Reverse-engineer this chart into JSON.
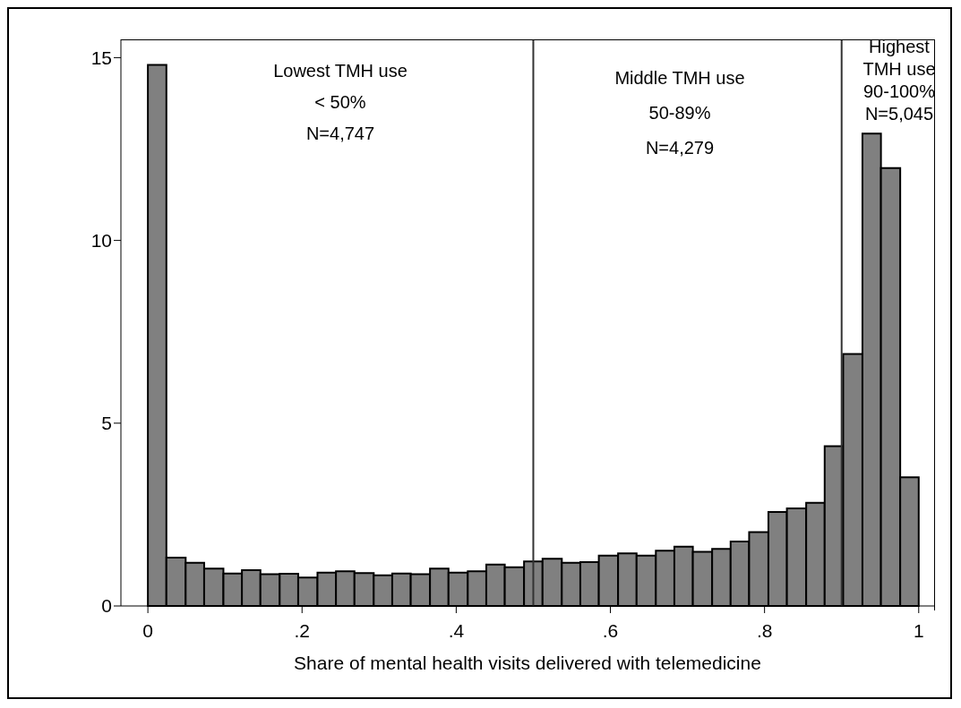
{
  "chart_data": {
    "type": "histogram",
    "xlabel": "Share of mental health visits delivered with telemedicine",
    "bins": [
      0,
      0.024,
      0.049,
      0.073,
      0.098,
      0.122,
      0.146,
      0.171,
      0.195,
      0.22,
      0.244,
      0.268,
      0.293,
      0.317,
      0.341,
      0.366,
      0.39,
      0.415,
      0.439,
      0.463,
      0.488,
      0.512,
      0.537,
      0.561,
      0.585,
      0.61,
      0.634,
      0.659,
      0.683,
      0.707,
      0.732,
      0.756,
      0.78,
      0.805,
      0.829,
      0.854,
      0.878,
      0.902,
      0.927,
      0.951,
      0.976,
      1
    ],
    "values": [
      14.8,
      1.32,
      1.18,
      1.02,
      0.89,
      0.98,
      0.87,
      0.88,
      0.78,
      0.91,
      0.95,
      0.9,
      0.84,
      0.89,
      0.87,
      1.02,
      0.91,
      0.95,
      1.13,
      1.06,
      1.22,
      1.29,
      1.18,
      1.2,
      1.38,
      1.44,
      1.38,
      1.51,
      1.62,
      1.48,
      1.56,
      1.76,
      2.02,
      2.57,
      2.67,
      2.82,
      4.37,
      6.89,
      12.92,
      11.98,
      3.52
    ],
    "color": "#808080",
    "xlim": [
      -0.035,
      1.02
    ],
    "xticks": [
      {
        "value": 0,
        "label": "0"
      },
      {
        "value": 0.2,
        "label": ".2"
      },
      {
        "value": 0.4,
        "label": ".4"
      },
      {
        "value": 0.6,
        "label": ".6"
      },
      {
        "value": 0.8,
        "label": ".8"
      },
      {
        "value": 1,
        "label": "1"
      }
    ],
    "ylim": [
      0,
      15.5
    ],
    "yticks": [
      0,
      5,
      10,
      15
    ],
    "grid": false,
    "ref_lines": [
      {
        "axis": "x",
        "value": 0.5,
        "color": "#333333"
      },
      {
        "axis": "x",
        "value": 0.9,
        "color": "#333333"
      }
    ],
    "annotations": [
      "Lowest TMH use\n< 50%\nN=4,747",
      "Middle TMH use\n50-89%\nN=4,279",
      "Highest\nTMH use\n90-100%\nN=5,045"
    ]
  }
}
